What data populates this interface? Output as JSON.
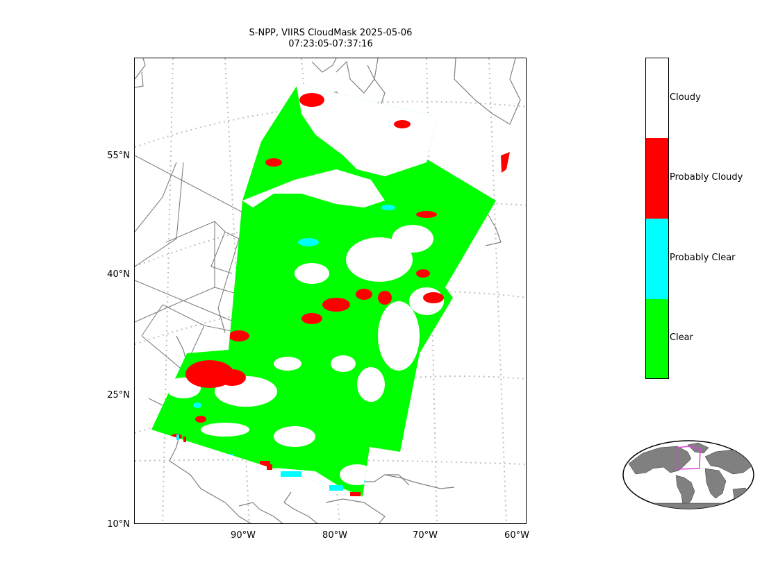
{
  "title": {
    "line1": "S-NPP, VIIRS CloudMask 2025-05-06",
    "line2": "07:23:05-07:37:16"
  },
  "map": {
    "lat_labels": [
      "55°N",
      "40°N",
      "25°N",
      "10°N"
    ],
    "lon_labels": [
      "90°W",
      "80°W",
      "70°W",
      "60°W"
    ],
    "colors": {
      "clear": "#00ff00",
      "probably_clear": "#00ffff",
      "probably_cloudy": "#ff0000",
      "cloudy": "#ffffff",
      "coastline": "#808080",
      "graticule": "#bfbfbf"
    }
  },
  "colorbar": {
    "classes": [
      {
        "label": "Cloudy",
        "color": "#ffffff"
      },
      {
        "label": "Probably Cloudy",
        "color": "#ff0000"
      },
      {
        "label": "Probably Clear",
        "color": "#00ffff"
      },
      {
        "label": "Clear",
        "color": "#00ff00"
      }
    ]
  },
  "inset": {
    "land_color": "#808080",
    "highlight_color": "#e040e0"
  }
}
